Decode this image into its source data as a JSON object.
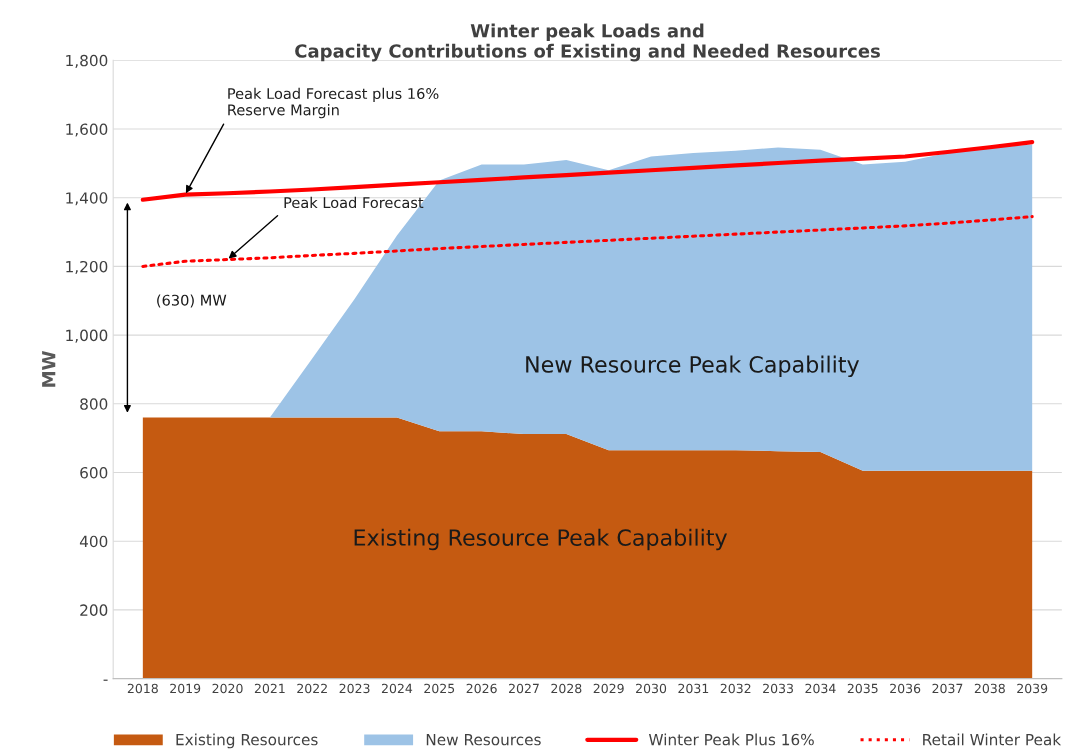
{
  "chart_data": {
    "type": "area",
    "stacked": true,
    "title": "Winter peak Loads and\nCapacity Contributions of Existing and Needed Resources",
    "ylabel": "MW",
    "categories": [
      "2018",
      "2019",
      "2020",
      "2021",
      "2022",
      "2023",
      "2024",
      "2025",
      "2026",
      "2027",
      "2028",
      "2029",
      "2030",
      "2031",
      "2032",
      "2033",
      "2034",
      "2035",
      "2036",
      "2037",
      "2038",
      "2039"
    ],
    "series": [
      {
        "name": "Existing Resources",
        "color": "#c55a11",
        "values": [
          760,
          760,
          760,
          760,
          760,
          760,
          760,
          720,
          720,
          712,
          712,
          665,
          665,
          665,
          665,
          662,
          660,
          605,
          605,
          605,
          605,
          605
        ]
      },
      {
        "name": "New Resources",
        "color": "#9dc3e6",
        "values": [
          0,
          0,
          0,
          0,
          172,
          345,
          530,
          730,
          777,
          785,
          798,
          815,
          855,
          865,
          872,
          884,
          880,
          892,
          900,
          925,
          940,
          950
        ]
      },
      {
        "name": "Winter Peak Plus 16%",
        "type": "line",
        "color": "#ff0000",
        "line_style": "solid",
        "values": [
          1394,
          1409,
          1413,
          1418,
          1424,
          1431,
          1438,
          1445,
          1452,
          1459,
          1466,
          1473,
          1480,
          1487,
          1494,
          1501,
          1508,
          1514,
          1520,
          1533,
          1547,
          1562
        ]
      },
      {
        "name": "Retail Winter Peak",
        "type": "line",
        "color": "#ff0000",
        "line_style": "dotted",
        "values": [
          1200,
          1215,
          1220,
          1225,
          1232,
          1238,
          1245,
          1252,
          1258,
          1264,
          1270,
          1276,
          1282,
          1288,
          1294,
          1300,
          1306,
          1312,
          1318,
          1326,
          1335,
          1345
        ]
      }
    ],
    "ylim": [
      0,
      1800
    ],
    "yticks": [
      {
        "value": 0,
        "label": "-"
      },
      {
        "value": 200,
        "label": "200"
      },
      {
        "value": 400,
        "label": "400"
      },
      {
        "value": 600,
        "label": "600"
      },
      {
        "value": 800,
        "label": "800"
      },
      {
        "value": 1000,
        "label": "1,000"
      },
      {
        "value": 1200,
        "label": "1,200"
      },
      {
        "value": 1400,
        "label": "1,400"
      },
      {
        "value": 1600,
        "label": "1,600"
      },
      {
        "value": 1800,
        "label": "1,800"
      }
    ],
    "grid": "y",
    "legend": "bottom",
    "annotations": [
      {
        "text": "Peak Load Forecast plus 16%\nReserve Margin",
        "x": "2019",
        "y": 1409
      },
      {
        "text": "Peak Load Forecast",
        "x": "2020",
        "y": 1220
      },
      "(630) MW",
      "New Resource Peak Capability",
      "Existing Resource Peak Capability"
    ]
  }
}
